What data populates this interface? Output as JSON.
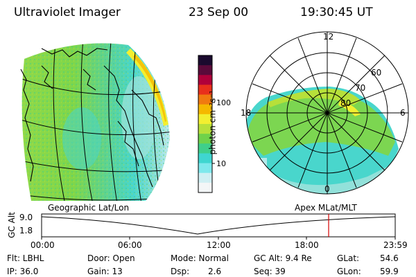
{
  "header": {
    "instrument": "Ultraviolet Imager",
    "date": "23 Sep 00",
    "time": "19:30:45 UT"
  },
  "colorbar": {
    "unit_label": "photon cm⁻²s⁻¹",
    "ticks": [
      "100",
      "10"
    ],
    "scale": "log",
    "colors": [
      "#1a0a2e",
      "#5a0a3a",
      "#b0003a",
      "#e8301c",
      "#f07a10",
      "#f5b800",
      "#f2ef30",
      "#b7e03a",
      "#6fd24a",
      "#3fcf8a",
      "#3fd6d0",
      "#7ee8ec",
      "#cfeff3",
      "#f3f6f7"
    ]
  },
  "polar_plot": {
    "mlt_labels": [
      "12",
      "18",
      "6",
      "0"
    ],
    "mlat_labels": [
      "60",
      "70",
      "80"
    ]
  },
  "timeline": {
    "left_title": "Geographic Lat/Lon",
    "right_title": "Apex MLat/MLT",
    "y_axis_label": "GC Alt",
    "y_ticks": [
      "9.0",
      "1.8"
    ],
    "x_ticks": [
      "00:00",
      "06:00",
      "12:00",
      "18:00",
      "23:59"
    ],
    "current_time_color": "#d40000"
  },
  "info": {
    "flt": "Flt: LBHL",
    "door": "Door: Open",
    "mode": "Mode: Normal",
    "gc_alt": "GC Alt: 9.4 Re",
    "glat_label": "GLat:",
    "glat_value": "54.6",
    "ip": "IP: 36.0",
    "gain": "Gain: 13",
    "dsp_label": "Dsp:",
    "dsp_value": "2.6",
    "seq": "Seq: 39",
    "glon_label": "GLon:",
    "glon_value": "59.9"
  }
}
